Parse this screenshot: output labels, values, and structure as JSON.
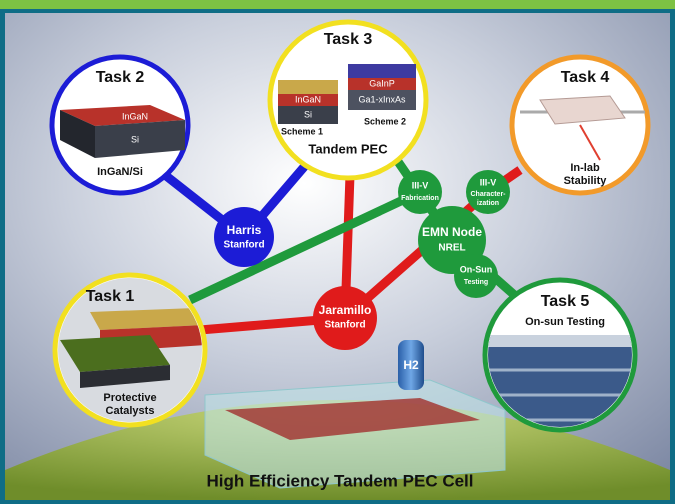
{
  "title": "High Efficiency Tandem PEC Cell",
  "tasks": [
    {
      "title": "Task 1",
      "caption": [
        "Protective",
        "Catalysts"
      ]
    },
    {
      "title": "Task 2",
      "layers": [
        "InGaN",
        "Si"
      ],
      "caption": [
        "InGaN/Si"
      ]
    },
    {
      "title": "Task 3",
      "layers": [
        "InGaN",
        "Si",
        "GaInP",
        "Ga1-xInxAs"
      ],
      "schemes": [
        "Scheme 1",
        "Scheme 2"
      ],
      "caption": [
        "Tandem PEC"
      ]
    },
    {
      "title": "Task 4",
      "caption": [
        "In-lab",
        "Stability"
      ]
    },
    {
      "title": "Task 5",
      "caption": [
        "On-sun Testing"
      ]
    }
  ],
  "hubs": [
    {
      "lines": [
        "Harris",
        "Stanford"
      ]
    },
    {
      "lines": [
        "Jaramillo",
        "Stanford"
      ]
    },
    {
      "lines": [
        "EMN Node",
        "NREL"
      ]
    }
  ],
  "subnodes": [
    {
      "lines": [
        "III-V",
        "Fabrication"
      ]
    },
    {
      "lines": [
        "III-V",
        "Character-",
        "ization"
      ]
    },
    {
      "lines": [
        "On-Sun",
        "Testing"
      ]
    }
  ],
  "tank_label": "H2"
}
